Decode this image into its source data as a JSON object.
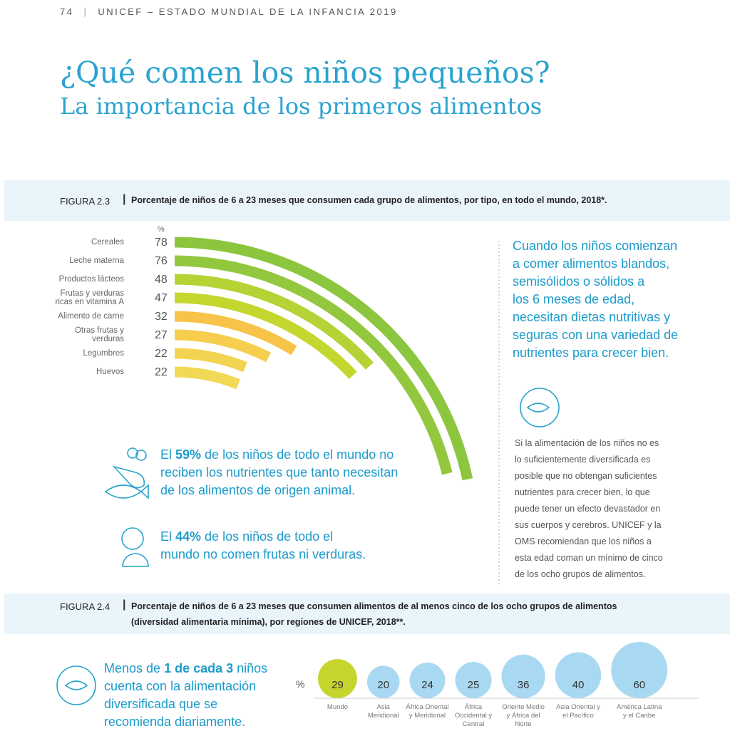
{
  "header": {
    "page": "74",
    "publication": "UNICEF – ESTADO MUNDIAL DE LA INFANCIA 2019"
  },
  "title": "¿Qué comen los niños pequeños?",
  "subtitle": "La importancia de los primeros alimentos",
  "figure_2_3": {
    "type": "arc",
    "label": "FIGURA 2.3",
    "caption": "Porcentaje de niños de 6 a 23 meses que consumen cada grupo de alimentos, por tipo, en todo el mundo, 2018*.",
    "unit": "%",
    "categories": [
      "Cereales",
      "Leche materna",
      "Productos lácteos",
      "Frutas y verduras\nricas en vitamina A",
      "Alimento de carne",
      "Otras frutas y\nverduras",
      "Legumbres",
      "Huevos"
    ],
    "values": [
      78,
      76,
      48,
      47,
      32,
      27,
      22,
      22
    ],
    "colors": [
      "#8cc63f",
      "#93c83e",
      "#b5d334",
      "#c3d72f",
      "#f7c348",
      "#f6cd4c",
      "#f3d452",
      "#f1d955"
    ]
  },
  "facts": [
    {
      "prefix": "El ",
      "highlight": "59%",
      "text": " de los niños de todo el mundo no\nreciben los nutrientes que tanto necesitan\nde los alimentos de origen animal."
    },
    {
      "prefix": "El ",
      "highlight": "44%",
      "text": " de los niños de todo el\nmundo no comen frutas ni verduras."
    }
  ],
  "callout": "Cuando los niños comienzan\na comer alimentos blandos,\nsemisólidos o sólidos a\nlos 6 meses de edad,\nnecesitan dietas nutritivas y\nseguras con una variedad de\nnutrientes para crecer bien.",
  "side_text": "Si la alimentación de los niños no es\nlo suficientemente diversificada es\nposible que no obtengan suficientes\nnutrientes para crecer bien, lo que\npuede tener un efecto devastador en\nsus cuerpos y cerebros. UNICEF y la\nOMS recomiendan que los niños a\nesta edad coman un mínimo de cinco\nde los ocho grupos de alimentos.",
  "figure_2_4": {
    "type": "bubble",
    "label": "FIGURA 2.4",
    "caption": "Porcentaje de niños de 6 a 23 meses que consumen alimentos de al menos cinco de los ocho grupos de alimentos\n(diversidad alimentaria mínima), por regiones de UNICEF, 2018**.",
    "unit": "%",
    "categories": [
      "Mundo",
      "Asia\nMeridional",
      "África Oriental\ny Meridional",
      "África\nOccidental y\nCentral",
      "Oriente Medio\ny África del\nNorte",
      "Asia Oriental y\nel Pacífico",
      "América Latina\ny el Caribe"
    ],
    "values": [
      29,
      20,
      24,
      25,
      36,
      40,
      60
    ],
    "colors": [
      "#c8d42e",
      "#a9d9f2",
      "#a9d9f2",
      "#a9d9f2",
      "#a9d9f2",
      "#a9d9f2",
      "#a9d9f2"
    ],
    "note": {
      "prefix": "Menos de ",
      "highlight": "1 de cada 3",
      "text": " niños\ncuenta con la alimentación\ndiversificada que se\nrecomienda diariamente."
    }
  }
}
